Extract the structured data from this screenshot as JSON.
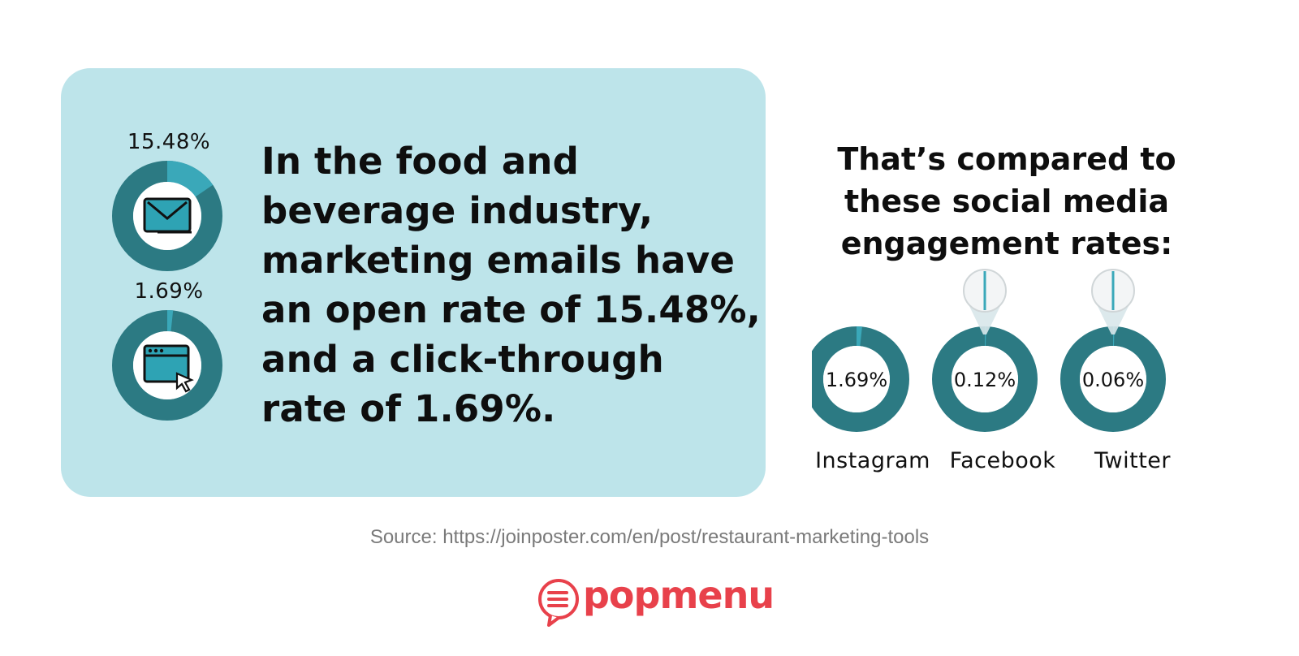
{
  "colors": {
    "panel_bg": "#bde4ea",
    "ring_dark": "#2c7a83",
    "ring_accent": "#3aa8b9",
    "brand_red": "#e8414b",
    "icon_fill": "#2ea3b4"
  },
  "headline": {
    "lines": [
      "In the food and",
      "beverage industry,",
      "marketing emails have",
      "an open rate of 15.48%,",
      "and a click-through",
      "rate of 1.69%."
    ]
  },
  "compare_title": {
    "lines": [
      "That’s compared to",
      "these social media",
      "engagement rates:"
    ]
  },
  "source": "Source: https://joinposter.com/en/post/restaurant-marketing-tools",
  "logo": {
    "text": "popmenu",
    "icon": "chat-bubble-menu-icon"
  },
  "chart_data": [
    {
      "type": "pie",
      "title": "",
      "slices": [
        {
          "label": "15.48%",
          "value": 15.48,
          "icon": "envelope-icon"
        }
      ]
    },
    {
      "type": "pie",
      "title": "",
      "slices": [
        {
          "label": "1.69%",
          "value": 1.69,
          "icon": "browser-click-icon"
        }
      ]
    },
    {
      "type": "pie",
      "title": "",
      "categories": [
        "Instagram",
        "Facebook",
        "Twitter"
      ],
      "values": [
        1.69,
        0.12,
        0.06
      ],
      "value_labels": [
        "1.69%",
        "0.12%",
        "0.06%"
      ],
      "zoom_callouts": [
        "Facebook",
        "Twitter"
      ]
    }
  ]
}
